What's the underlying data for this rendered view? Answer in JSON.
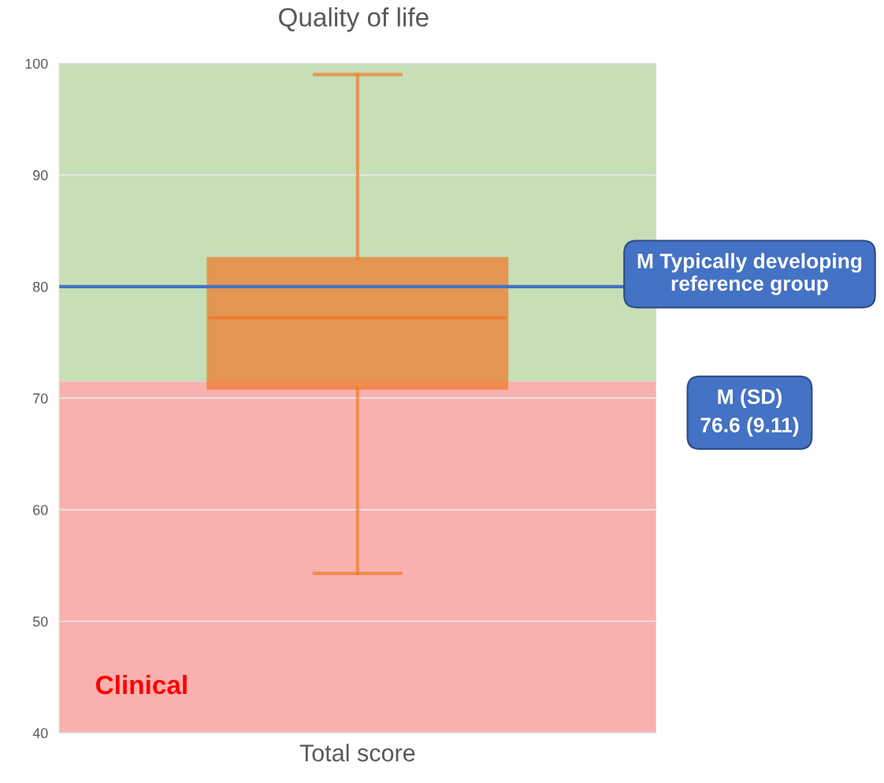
{
  "chart_data": {
    "type": "box",
    "title": "Quality of life",
    "categories": [
      "Total score"
    ],
    "series": [
      {
        "color": "#ed7d31",
        "boxes": [
          {
            "low": 54.3,
            "q1": 70.9,
            "median": 77.2,
            "q3": 82.5,
            "high": 99
          }
        ]
      }
    ],
    "ylim": [
      40,
      100
    ],
    "yticks": [
      40,
      50,
      60,
      70,
      80,
      90,
      100
    ],
    "grid": "y",
    "ref_lines": [
      {
        "axis": "y",
        "value": 80,
        "label": "M Typically developing reference group",
        "color": "#4472c4"
      }
    ],
    "bands": [
      {
        "axis": "y",
        "from": 71.5,
        "to": 100,
        "color": "#c6dfb7"
      },
      {
        "axis": "y",
        "from": 40,
        "to": 71.5,
        "label": "Clinical",
        "color": "#f9b1b0"
      }
    ],
    "annotations": [
      "M (SD)\n76.6 (9.11)"
    ]
  }
}
